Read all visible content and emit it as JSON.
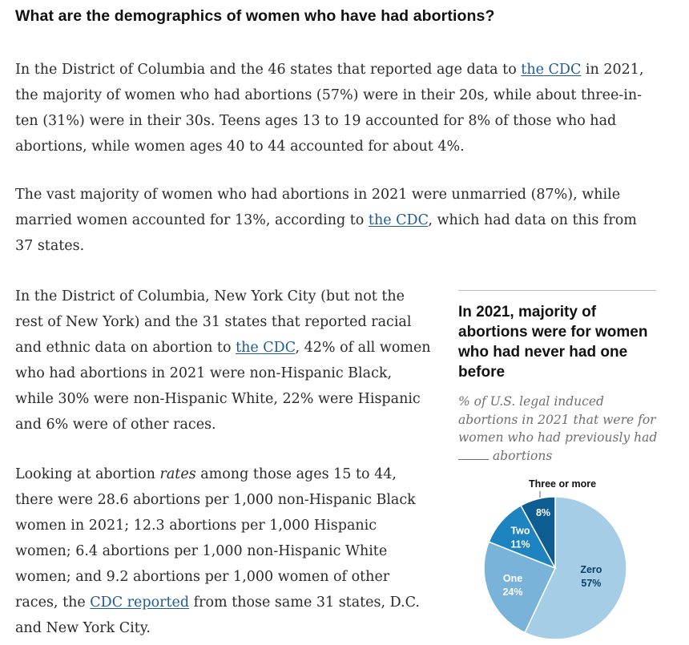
{
  "heading": "What are the demographics of women who have had abortions?",
  "p1": {
    "t1": "In the District of Columbia and the 46 states that reported age data to ",
    "link": "the CDC",
    "t2": " in 2021, the majority of women who had abortions (57%) were in their 20s, while about three-in-ten (31%) were in their 30s. Teens ages 13 to 19 accounted for 8% of those who had abortions, while women ages 40 to 44 accounted for about 4%."
  },
  "p2": {
    "t1": "The vast majority of women who had abortions in 2021 were unmarried (87%), while married women accounted for 13%, according to ",
    "link": "the CDC",
    "t2": ", which had data on this from 37 states."
  },
  "p3": {
    "t1": "In the District of Columbia, New York City (but not the rest of New York) and the 31 states that reported racial and ethnic data on abortion to ",
    "link": "the CDC",
    "t2": ", 42% of all women who had abortions in 2021 were non-Hispanic Black, while 30% were non-Hispanic White, 22% were Hispanic and 6% were of other races."
  },
  "p4": {
    "t1": "Looking at abortion ",
    "em": "rates",
    "t2": " among those ages 15 to 44, there were 28.6 abortions per 1,000 non-Hispanic Black women in 2021; 12.3 abortions per 1,000 Hispanic women; 6.4 abortions per 1,000 non-Hispanic White women; and 9.2 abortions per 1,000 women of other races, the ",
    "link": "CDC reported",
    "t3": " from those same 31 states, D.C. and New York City."
  },
  "colors": {
    "link": "#1f5a94",
    "zero": "#a6cde6",
    "one": "#79b3da",
    "two": "#1e84c0",
    "three_or_more": "#0d5d93"
  },
  "chart_data": {
    "type": "pie",
    "title": "In 2021, majority of abortions were for women who had never had one before",
    "subtitle": {
      "before": "% of U.S. legal induced abortions in 2021 that were for women who had previously had",
      "after": "abortions"
    },
    "slices": [
      {
        "label": "Zero",
        "value": 57,
        "display": "57%"
      },
      {
        "label": "One",
        "value": 24,
        "display": "24%"
      },
      {
        "label": "Two",
        "value": 11,
        "display": "11%"
      },
      {
        "label": "Three or more",
        "value": 8,
        "display": "8%"
      }
    ]
  }
}
